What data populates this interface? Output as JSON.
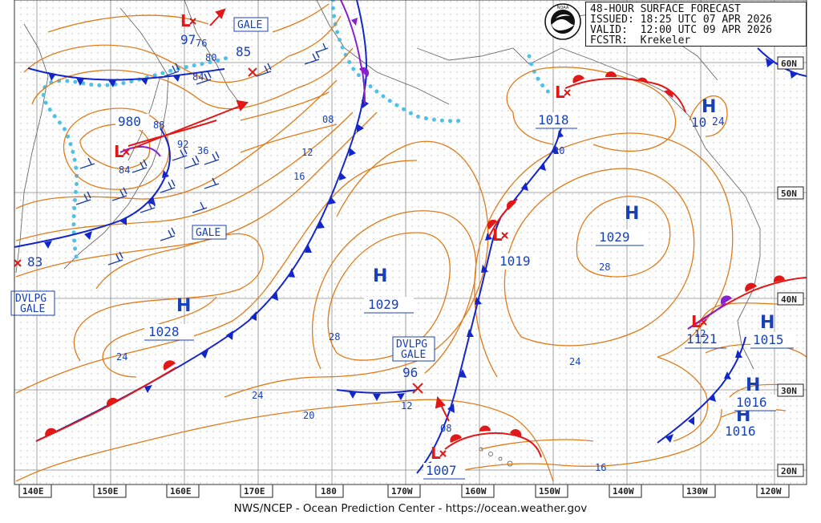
{
  "header": {
    "title": "48-HOUR SURFACE FORECAST",
    "issued": "ISSUED: 18:25 UTC 07 APR 2026",
    "valid": "VALID:  12:00 UTC 09 APR 2026",
    "forecaster": "FCSTR:  Krekeler",
    "logo_text": "NOAA"
  },
  "footer": "NWS/NCEP - Ocean Prediction Center - https://ocean.weather.gov",
  "lon_labels": [
    "140E",
    "150E",
    "160E",
    "170E",
    "180",
    "170W",
    "160W",
    "150W",
    "140W",
    "130W",
    "120W"
  ],
  "lat_labels": [
    "60N",
    "50N",
    "40N",
    "30N",
    "20N"
  ],
  "highs": [
    {
      "id": "high-1028",
      "symbol": "H",
      "pressure": "1028"
    },
    {
      "id": "high-1029-central",
      "symbol": "H",
      "pressure": "1029"
    },
    {
      "id": "high-1029-east",
      "symbol": "H",
      "pressure": "1029"
    },
    {
      "id": "high-10-24",
      "symbol": "H",
      "pressure": "10",
      "pressure2": "24"
    },
    {
      "id": "high-1015",
      "symbol": "H",
      "pressure": "1015"
    },
    {
      "id": "high-1016-a",
      "symbol": "H",
      "pressure": "1016"
    },
    {
      "id": "high-1016-b",
      "symbol": "H",
      "pressure": "1016"
    }
  ],
  "lows": [
    {
      "id": "low-980",
      "pressure": "980"
    },
    {
      "id": "low-97",
      "pressure": "97"
    },
    {
      "id": "low-1018",
      "pressure": "1018"
    },
    {
      "id": "low-1019",
      "pressure": "1019"
    },
    {
      "id": "low-1007",
      "pressure": "1007"
    },
    {
      "id": "low-1121",
      "pressure": "1121"
    }
  ],
  "cross_labels": [
    {
      "id": "cross-85",
      "pressure": "85"
    },
    {
      "id": "cross-96",
      "pressure": "96"
    },
    {
      "id": "cross-83",
      "pressure": "83"
    }
  ],
  "warnings": {
    "gale_1": "GALE",
    "gale_2": "GALE",
    "dvlpg_gale_1": [
      "DVLPG",
      "GALE"
    ],
    "dvlpg_gale_2": [
      "DVLPG",
      "GALE"
    ]
  },
  "isobar_labels": [
    "76",
    "80",
    "84",
    "88",
    "92",
    "36",
    "84",
    "08",
    "12",
    "16",
    "28",
    "24",
    "24",
    "20",
    "12",
    "08",
    "16",
    "24",
    "28",
    "20",
    "12"
  ],
  "colors": {
    "isobar": "#e07b1a",
    "cold_front": "#1326c9",
    "warm_front": "#e01818",
    "occluded": "#8a1fd0",
    "ice_edge": "#4fc1e6",
    "coast": "#6b6b6b",
    "grid": "#8a8a8a",
    "text_blue": "#1840b8",
    "wind": "#1a3fa8"
  }
}
